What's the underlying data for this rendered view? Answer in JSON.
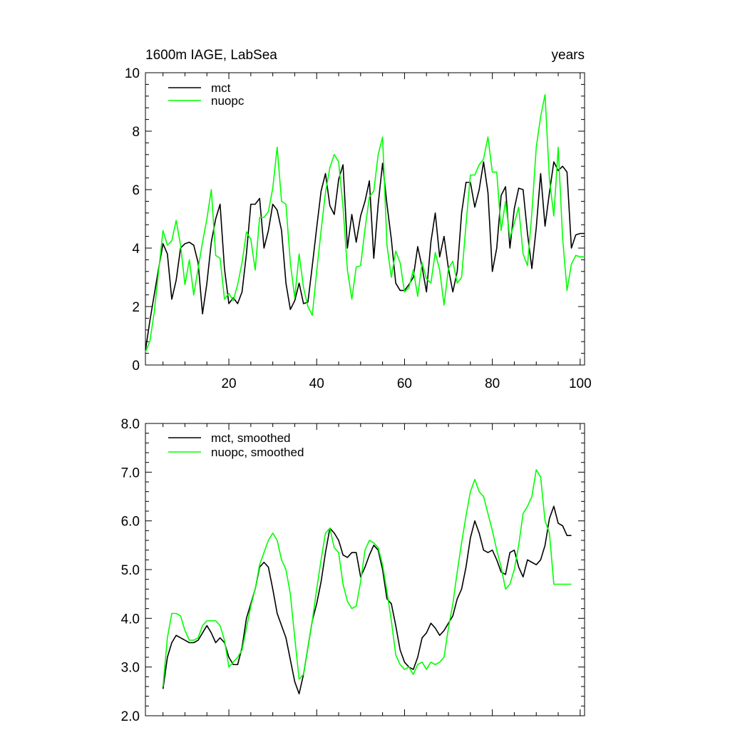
{
  "chart_data": [
    {
      "type": "line",
      "title": "1600m IAGE, LabSea",
      "right_title": "years",
      "xlabel": "",
      "ylabel": "",
      "xlim": [
        1,
        101
      ],
      "ylim": [
        0,
        10
      ],
      "yticks": [
        0,
        2,
        4,
        6,
        8,
        10
      ],
      "ytick_labels": [
        "0",
        "2",
        "4",
        "6",
        "8",
        "10"
      ],
      "xticks": [
        20,
        40,
        60,
        80,
        100
      ],
      "xtick_labels": [
        "20",
        "40",
        "60",
        "80",
        "100"
      ],
      "legend_position": "top-left",
      "series": [
        {
          "name": "mct",
          "color": "#000000",
          "x": [
            1,
            2,
            3,
            4,
            5,
            6,
            7,
            8,
            9,
            10,
            11,
            12,
            13,
            14,
            15,
            16,
            17,
            18,
            19,
            20,
            21,
            22,
            23,
            24,
            25,
            26,
            27,
            28,
            29,
            30,
            31,
            32,
            33,
            34,
            35,
            36,
            37,
            38,
            39,
            40,
            41,
            42,
            43,
            44,
            45,
            46,
            47,
            48,
            49,
            50,
            51,
            52,
            53,
            54,
            55,
            56,
            57,
            58,
            59,
            60,
            61,
            62,
            63,
            64,
            65,
            66,
            67,
            68,
            69,
            70,
            71,
            72,
            73,
            74,
            75,
            76,
            77,
            78,
            79,
            80,
            81,
            82,
            83,
            84,
            85,
            86,
            87,
            88,
            89,
            90,
            91,
            92,
            93,
            94,
            95,
            96,
            97,
            98,
            99,
            100,
            101
          ],
          "values": [
            0.5,
            1.5,
            2.4,
            3.3,
            4.15,
            3.8,
            2.25,
            2.9,
            4.0,
            4.15,
            4.2,
            4.1,
            3.5,
            1.75,
            2.8,
            4.2,
            5.0,
            5.5,
            3.3,
            2.1,
            2.3,
            2.1,
            2.5,
            3.8,
            5.5,
            5.5,
            5.7,
            4.0,
            4.6,
            5.5,
            5.3,
            4.6,
            2.8,
            1.9,
            2.2,
            2.8,
            2.1,
            2.15,
            3.4,
            4.7,
            5.95,
            6.55,
            5.45,
            5.15,
            6.35,
            6.85,
            4.0,
            5.15,
            4.2,
            5.1,
            5.6,
            6.3,
            3.65,
            5.5,
            6.9,
            5.5,
            4.3,
            2.8,
            2.55,
            2.55,
            2.75,
            3.0,
            4.05,
            3.35,
            2.5,
            4.2,
            5.2,
            3.7,
            4.4,
            3.3,
            2.5,
            3.2,
            5.2,
            6.25,
            6.25,
            5.4,
            6.0,
            6.95,
            5.9,
            3.2,
            4.0,
            5.8,
            6.1,
            4.0,
            5.35,
            6.05,
            6.0,
            4.5,
            3.3,
            4.7,
            6.55,
            4.75,
            5.9,
            6.95,
            6.65,
            6.8,
            6.6,
            4.0,
            4.45,
            4.5,
            4.5
          ]
        },
        {
          "name": "nuopc",
          "color": "#00ff00",
          "x": [
            1,
            2,
            3,
            4,
            5,
            6,
            7,
            8,
            9,
            10,
            11,
            12,
            13,
            14,
            15,
            16,
            17,
            18,
            19,
            20,
            21,
            22,
            23,
            24,
            25,
            26,
            27,
            28,
            29,
            30,
            31,
            32,
            33,
            34,
            35,
            36,
            37,
            38,
            39,
            40,
            41,
            42,
            43,
            44,
            45,
            46,
            47,
            48,
            49,
            50,
            51,
            52,
            53,
            54,
            55,
            56,
            57,
            58,
            59,
            60,
            61,
            62,
            63,
            64,
            65,
            66,
            67,
            68,
            69,
            70,
            71,
            72,
            73,
            74,
            75,
            76,
            77,
            78,
            79,
            80,
            81,
            82,
            83,
            84,
            85,
            86,
            87,
            88,
            89,
            90,
            91,
            92,
            93,
            94,
            95,
            96,
            97,
            98,
            99,
            100,
            101
          ],
          "values": [
            0.45,
            0.8,
            1.8,
            3.2,
            4.6,
            4.1,
            4.25,
            4.95,
            4.1,
            2.75,
            3.6,
            2.4,
            3.3,
            4.2,
            5.0,
            6.0,
            3.75,
            3.65,
            2.25,
            2.45,
            2.2,
            2.75,
            3.5,
            4.55,
            4.3,
            3.25,
            5.05,
            5.05,
            5.25,
            6.05,
            7.45,
            5.6,
            5.5,
            3.5,
            2.3,
            3.8,
            2.65,
            2.0,
            1.7,
            3.2,
            4.6,
            5.9,
            6.75,
            7.2,
            6.95,
            5.4,
            3.25,
            2.25,
            3.35,
            3.4,
            4.65,
            5.75,
            5.95,
            7.2,
            7.8,
            4.1,
            3.0,
            3.9,
            3.5,
            2.5,
            2.65,
            3.25,
            2.35,
            3.5,
            2.95,
            2.8,
            3.85,
            3.25,
            2.05,
            3.3,
            3.55,
            2.8,
            3.0,
            4.8,
            6.5,
            6.5,
            6.85,
            7.05,
            7.8,
            6.6,
            6.6,
            4.6,
            5.6,
            4.35,
            4.85,
            5.4,
            3.8,
            3.4,
            5.2,
            7.45,
            8.5,
            9.25,
            6.35,
            5.1,
            7.45,
            4.35,
            2.55,
            3.45,
            3.75,
            3.7,
            3.7
          ]
        }
      ]
    },
    {
      "type": "line",
      "title": "",
      "xlabel": "",
      "ylabel": "",
      "xlim": [
        1,
        101
      ],
      "ylim": [
        2.0,
        8.0
      ],
      "yticks": [
        2.0,
        3.0,
        4.0,
        5.0,
        6.0,
        7.0,
        8.0
      ],
      "ytick_labels": [
        "2.0",
        "3.0",
        "4.0",
        "5.0",
        "6.0",
        "7.0",
        "8.0"
      ],
      "xticks": [
        20,
        40,
        60,
        80,
        100
      ],
      "xtick_labels": [],
      "legend_position": "top-left",
      "series": [
        {
          "name": "mct, smoothed",
          "color": "#000000",
          "x": [
            5,
            6,
            7,
            8,
            9,
            10,
            11,
            12,
            13,
            14,
            15,
            16,
            17,
            18,
            19,
            20,
            21,
            22,
            23,
            24,
            25,
            26,
            27,
            28,
            29,
            30,
            31,
            32,
            33,
            34,
            35,
            36,
            37,
            38,
            39,
            40,
            41,
            42,
            43,
            44,
            45,
            46,
            47,
            48,
            49,
            50,
            51,
            52,
            53,
            54,
            55,
            56,
            57,
            58,
            59,
            60,
            61,
            62,
            63,
            64,
            65,
            66,
            67,
            68,
            69,
            70,
            71,
            72,
            73,
            74,
            75,
            76,
            77,
            78,
            79,
            80,
            81,
            82,
            83,
            84,
            85,
            86,
            87,
            88,
            89,
            90,
            91,
            92,
            93,
            94,
            95,
            96,
            97,
            98
          ],
          "values": [
            2.55,
            3.2,
            3.5,
            3.65,
            3.6,
            3.55,
            3.5,
            3.5,
            3.55,
            3.7,
            3.85,
            3.7,
            3.5,
            3.6,
            3.5,
            3.2,
            3.05,
            3.05,
            3.4,
            4.0,
            4.3,
            4.6,
            5.05,
            5.15,
            5.05,
            4.6,
            4.1,
            3.85,
            3.6,
            3.15,
            2.7,
            2.45,
            2.85,
            3.4,
            3.95,
            4.3,
            4.75,
            5.35,
            5.85,
            5.75,
            5.6,
            5.3,
            5.25,
            5.35,
            5.35,
            4.85,
            5.05,
            5.3,
            5.5,
            5.4,
            5.0,
            4.4,
            4.3,
            3.85,
            3.35,
            3.1,
            3.0,
            2.95,
            3.2,
            3.6,
            3.7,
            3.9,
            3.8,
            3.65,
            3.75,
            3.9,
            4.05,
            4.4,
            4.6,
            5.05,
            5.65,
            6.0,
            5.75,
            5.4,
            5.35,
            5.4,
            5.2,
            4.95,
            4.9,
            5.35,
            5.4,
            5.05,
            4.85,
            5.2,
            5.15,
            5.1,
            5.2,
            5.5,
            6.05,
            6.3,
            5.95,
            5.9,
            5.7,
            5.7
          ]
        },
        {
          "name": "nuopc, smoothed",
          "color": "#00ff00",
          "x": [
            5,
            6,
            7,
            8,
            9,
            10,
            11,
            12,
            13,
            14,
            15,
            16,
            17,
            18,
            19,
            20,
            21,
            22,
            23,
            24,
            25,
            26,
            27,
            28,
            29,
            30,
            31,
            32,
            33,
            34,
            35,
            36,
            37,
            38,
            39,
            40,
            41,
            42,
            43,
            44,
            45,
            46,
            47,
            48,
            49,
            50,
            51,
            52,
            53,
            54,
            55,
            56,
            57,
            58,
            59,
            60,
            61,
            62,
            63,
            64,
            65,
            66,
            67,
            68,
            69,
            70,
            71,
            72,
            73,
            74,
            75,
            76,
            77,
            78,
            79,
            80,
            81,
            82,
            83,
            84,
            85,
            86,
            87,
            88,
            89,
            90,
            91,
            92,
            93,
            94,
            95,
            96,
            97,
            98
          ],
          "values": [
            2.6,
            3.6,
            4.1,
            4.1,
            4.05,
            3.75,
            3.55,
            3.55,
            3.6,
            3.85,
            3.95,
            3.95,
            3.95,
            3.85,
            3.55,
            3.0,
            3.1,
            3.2,
            3.35,
            3.8,
            4.25,
            4.6,
            5.1,
            5.35,
            5.6,
            5.75,
            5.6,
            5.2,
            5.0,
            4.5,
            3.6,
            2.75,
            2.85,
            3.4,
            3.95,
            4.6,
            5.2,
            5.75,
            5.85,
            5.45,
            5.35,
            4.7,
            4.35,
            4.2,
            4.25,
            4.75,
            5.4,
            5.6,
            5.55,
            5.45,
            5.1,
            4.55,
            3.95,
            3.25,
            3.05,
            2.95,
            3.0,
            2.85,
            3.05,
            3.1,
            2.95,
            3.1,
            3.05,
            3.1,
            3.2,
            3.8,
            4.3,
            4.95,
            5.55,
            6.1,
            6.6,
            6.85,
            6.6,
            6.5,
            6.15,
            5.8,
            5.4,
            5.05,
            4.6,
            4.7,
            5.0,
            5.5,
            6.15,
            6.3,
            6.5,
            7.05,
            6.9,
            6.0,
            5.75,
            4.7,
            4.7,
            4.7,
            4.7,
            4.7
          ]
        }
      ]
    }
  ]
}
